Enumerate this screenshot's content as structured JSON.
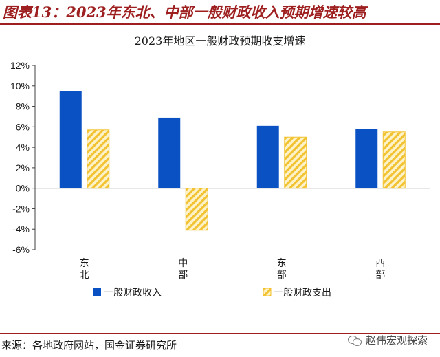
{
  "figure": {
    "title": "图表13：2023年东北、中部一般财政收入预期增速较高",
    "source": "来源：各地政府网站，国金证券研究所",
    "watermark": "赵伟宏观探索"
  },
  "colors": {
    "brand": "#9e1f1f",
    "income": "#0a52c4",
    "expense_stripe": "#f2c230",
    "expense_base": "#fdf2c8"
  },
  "chart_data": {
    "type": "bar",
    "title": "2023年地区一般财政预期收支增速",
    "categories": [
      "东北",
      "中部",
      "东部",
      "西部"
    ],
    "series": [
      {
        "name": "一般财政收入",
        "values": [
          9.5,
          6.9,
          6.1,
          5.8
        ]
      },
      {
        "name": "一般财政支出",
        "values": [
          5.7,
          -4.1,
          5.0,
          5.5
        ]
      }
    ],
    "ylim": [
      -6,
      12
    ],
    "yticks": [
      12,
      10,
      8,
      6,
      4,
      2,
      0,
      -2,
      -4,
      -6
    ],
    "y_tick_format": "percent",
    "legend_position": "bottom",
    "grid": false
  }
}
